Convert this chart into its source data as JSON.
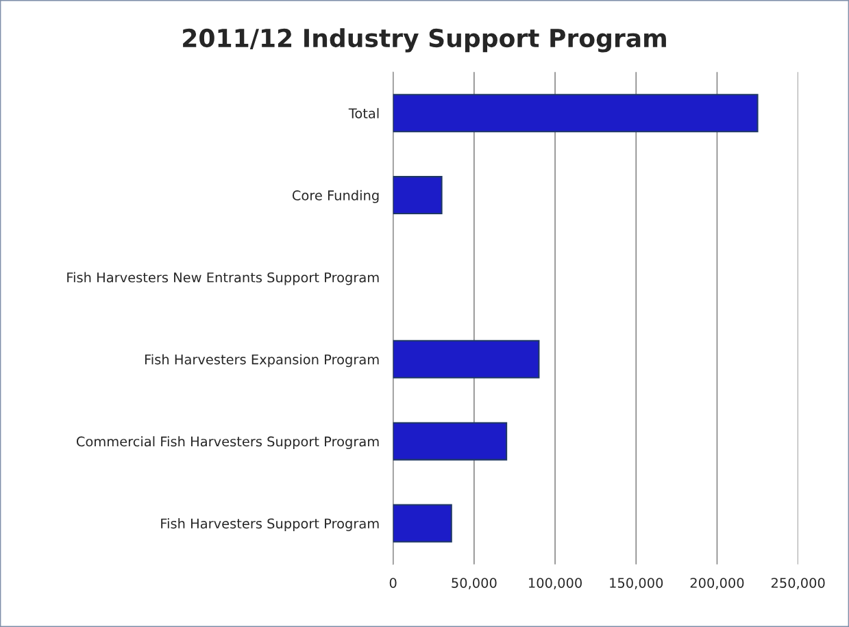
{
  "chart_data": {
    "type": "bar",
    "title": "2011/12 Industry Support Program",
    "orientation": "horizontal",
    "categories": [
      "Total",
      "Core Funding",
      "Fish Harvesters New Entrants Support Program",
      "Fish Harvesters Expansion Program",
      "Commercial Fish Harvesters Support Program",
      "Fish Harvesters Support Program"
    ],
    "values": [
      225000,
      30000,
      0,
      90000,
      70000,
      36000
    ],
    "color": "#1c1cc8",
    "xlim": [
      0,
      250000
    ],
    "xticks": [
      {
        "value": 0,
        "label": "0"
      },
      {
        "value": 50000,
        "label": "50,000"
      },
      {
        "value": 100000,
        "label": "100,000"
      },
      {
        "value": 150000,
        "label": "150,000"
      },
      {
        "value": 200000,
        "label": "200,000"
      },
      {
        "value": 250000,
        "label": "250,000"
      }
    ],
    "grid": "x",
    "legend": false
  }
}
